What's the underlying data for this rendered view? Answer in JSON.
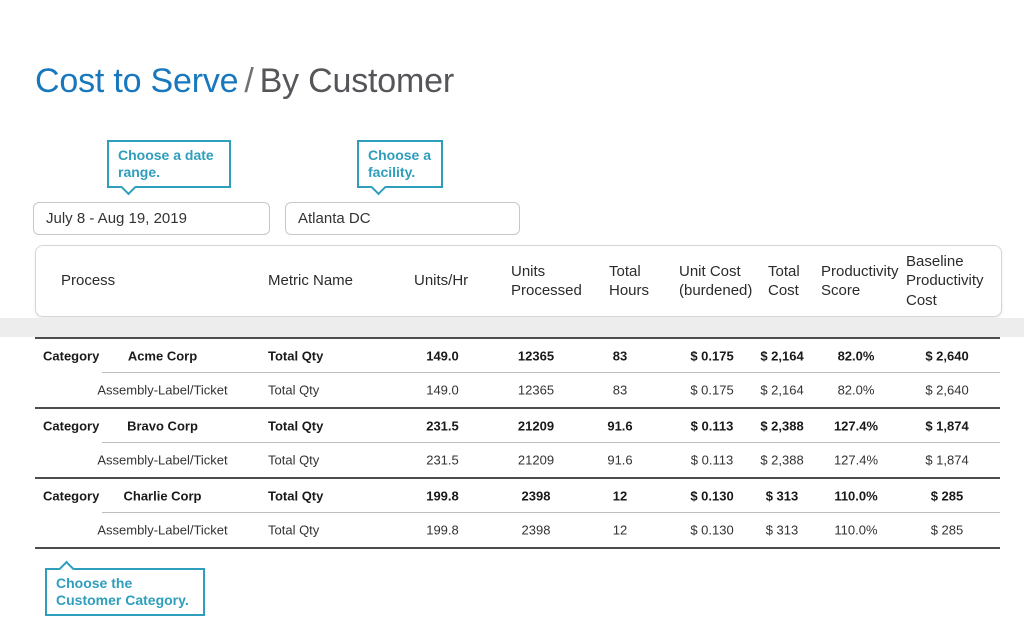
{
  "page": {
    "title_primary": "Cost to Serve",
    "title_separator": "/",
    "title_secondary": "By Customer"
  },
  "callouts": {
    "date_range": "Choose a date range.",
    "facility": "Choose a facility.",
    "customer_category": "Choose the Customer Category."
  },
  "filters": {
    "date_range_value": "July 8 - Aug 19, 2019",
    "facility_value": "Atlanta DC"
  },
  "table": {
    "headers": [
      "Process",
      "Metric Name",
      "Units/Hr",
      "Units Processed",
      "Total Hours",
      "Unit Cost (burdened)",
      "Total Cost",
      "Productivity Score",
      "Baseline Productivity Cost"
    ],
    "groups": [
      {
        "category": "Category",
        "customer": "Acme Corp",
        "main": {
          "metric": "Total Qty",
          "units_hr": "149.0",
          "units_processed": "12365",
          "total_hours": "83",
          "unit_cost": "$ 0.175",
          "total_cost": "$ 2,164",
          "productivity": "82.0%",
          "baseline": "$ 2,640"
        },
        "detail": {
          "process": "Assembly-Label/Ticket",
          "metric": "Total Qty",
          "units_hr": "149.0",
          "units_processed": "12365",
          "total_hours": "83",
          "unit_cost": "$ 0.175",
          "total_cost": "$ 2,164",
          "productivity": "82.0%",
          "baseline": "$ 2,640"
        }
      },
      {
        "category": "Category",
        "customer": "Bravo Corp",
        "main": {
          "metric": "Total Qty",
          "units_hr": "231.5",
          "units_processed": "21209",
          "total_hours": "91.6",
          "unit_cost": "$ 0.113",
          "total_cost": "$ 2,388",
          "productivity": "127.4%",
          "baseline": "$ 1,874"
        },
        "detail": {
          "process": "Assembly-Label/Ticket",
          "metric": "Total Qty",
          "units_hr": "231.5",
          "units_processed": "21209",
          "total_hours": "91.6",
          "unit_cost": "$ 0.113",
          "total_cost": "$ 2,388",
          "productivity": "127.4%",
          "baseline": "$ 1,874"
        }
      },
      {
        "category": "Category",
        "customer": "Charlie Corp",
        "main": {
          "metric": "Total Qty",
          "units_hr": "199.8",
          "units_processed": "2398",
          "total_hours": "12",
          "unit_cost": "$ 0.130",
          "total_cost": "$ 313",
          "productivity": "110.0%",
          "baseline": "$ 285"
        },
        "detail": {
          "process": "Assembly-Label/Ticket",
          "metric": "Total Qty",
          "units_hr": "199.8",
          "units_processed": "2398",
          "total_hours": "12",
          "unit_cost": "$ 0.130",
          "total_cost": "$ 313",
          "productivity": "110.0%",
          "baseline": "$ 285"
        }
      }
    ]
  },
  "colors": {
    "accent_blue": "#1878BE",
    "callout_teal": "#2E9EBC",
    "title_gray": "#55565A"
  }
}
